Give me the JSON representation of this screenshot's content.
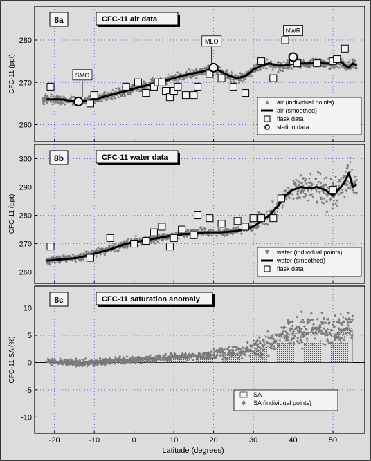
{
  "colors": {
    "background": "#dcdcdc",
    "plot_bg": "#dcdcdc",
    "grid": "#3a3aff",
    "points": "#7a7a7a",
    "smoothed": "#000000",
    "frame": "#000000"
  },
  "xaxis": {
    "label": "Latitude   (degrees)",
    "range": [
      -25,
      58
    ],
    "ticks": [
      -20,
      -10,
      0,
      10,
      20,
      30,
      40,
      50
    ],
    "tick_labels": [
      "-20",
      "-10",
      "0",
      "10",
      "20",
      "30",
      "40",
      "50"
    ]
  },
  "chart_data": [
    {
      "type": "scatter",
      "panel_label": "8a",
      "title": "CFC-11 air data",
      "ylabel": "CFC-11   (ppt)",
      "ylim": [
        256,
        288
      ],
      "yticks": [
        260,
        270,
        280
      ],
      "ytick_labels": [
        "260",
        "270",
        "280"
      ],
      "grid": true,
      "legend_position": "lower-right",
      "legend": [
        "air (individual points)",
        "air (smoothed)",
        "flask data",
        "station data"
      ],
      "annotations": [
        {
          "text": "SMO",
          "x": -13,
          "y": 265.5
        },
        {
          "text": "MLO",
          "x": 19.5,
          "y": 273.5
        },
        {
          "text": "NWR",
          "x": 40,
          "y": 276
        }
      ],
      "series": [
        {
          "name": "air (smoothed)",
          "kind": "line",
          "x": [
            -22,
            -18,
            -15,
            -13,
            -10,
            -6,
            -2,
            2,
            6,
            10,
            14,
            17,
            19,
            20,
            22,
            24,
            26,
            28,
            30,
            32,
            34,
            36,
            38,
            40,
            42,
            44,
            46,
            48,
            50,
            52,
            53,
            54,
            55,
            56
          ],
          "y": [
            266,
            266,
            265.5,
            265.5,
            266,
            267,
            268,
            269,
            270,
            271,
            272,
            272.5,
            273,
            273.5,
            272.5,
            271.5,
            271,
            271.5,
            273,
            274,
            274.5,
            274,
            274,
            274.5,
            274.5,
            274.5,
            275,
            274.5,
            274.5,
            275,
            274,
            273.5,
            274.5,
            274
          ]
        },
        {
          "name": "flask data",
          "kind": "square",
          "x": [
            -21,
            -11,
            -10,
            -2,
            1,
            3,
            5,
            6,
            7,
            8,
            9,
            10,
            11,
            13,
            15,
            16,
            19,
            22,
            25,
            28,
            32,
            35,
            38,
            40,
            41,
            46,
            50,
            51,
            53
          ],
          "y": [
            269,
            265,
            267,
            269,
            270,
            267.5,
            269,
            270,
            270,
            268,
            266.5,
            268,
            269,
            267,
            267,
            269,
            272,
            271,
            269,
            267.5,
            275,
            271,
            280,
            275,
            274.5,
            274.5,
            275,
            275.5,
            278
          ]
        },
        {
          "name": "station data",
          "kind": "circle",
          "x": [
            -14,
            20,
            40
          ],
          "y": [
            265.5,
            273.5,
            276
          ]
        }
      ]
    },
    {
      "type": "scatter",
      "panel_label": "8b",
      "title": "CFC-11 water data",
      "ylabel": "CFC-11   (ppt)",
      "ylim": [
        256,
        305
      ],
      "yticks": [
        260,
        270,
        280,
        290,
        300
      ],
      "ytick_labels": [
        "260",
        "270",
        "280",
        "290",
        "300"
      ],
      "grid": true,
      "legend_position": "lower-right",
      "legend": [
        "water (individual points)",
        "water (smoothed)",
        "flask data"
      ],
      "series": [
        {
          "name": "water (smoothed)",
          "kind": "line",
          "x": [
            -22,
            -18,
            -14,
            -10,
            -6,
            -2,
            2,
            6,
            10,
            14,
            18,
            22,
            26,
            30,
            32,
            34,
            36,
            38,
            40,
            42,
            44,
            46,
            48,
            49,
            50,
            52,
            53,
            54,
            55,
            56
          ],
          "y": [
            264,
            264.5,
            265,
            266.5,
            268,
            270,
            271,
            272,
            273,
            273.5,
            274,
            274,
            274.5,
            276,
            278,
            280,
            283,
            287,
            289,
            290,
            289.5,
            290,
            289,
            288,
            287,
            290,
            292,
            295,
            290,
            291
          ]
        },
        {
          "name": "flask data",
          "kind": "square",
          "x": [
            -21,
            -11,
            -6,
            0,
            3,
            5,
            7,
            9,
            10,
            12,
            15,
            16,
            19,
            22,
            26,
            28,
            30,
            32,
            35,
            37,
            50
          ],
          "y": [
            269,
            265,
            272,
            270,
            271,
            274,
            276,
            269,
            272,
            275,
            273,
            280,
            279,
            277,
            278,
            276,
            279,
            279,
            279,
            286,
            289
          ]
        }
      ]
    },
    {
      "type": "scatter",
      "panel_label": "8c",
      "title": "CFC-11 saturation anomaly",
      "ylabel": "CFC-11 SA   (%)",
      "ylim": [
        -13,
        14
      ],
      "yticks": [
        -10,
        -5,
        0,
        5,
        10
      ],
      "ytick_labels": [
        "-10",
        "-5",
        "0",
        "5",
        "10"
      ],
      "grid": true,
      "legend_position": "lower-right",
      "legend": [
        "SA",
        "SA (individual points)"
      ],
      "series": [
        {
          "name": "SA",
          "kind": "area",
          "x": [
            -22,
            -18,
            -14,
            -10,
            -6,
            -2,
            2,
            6,
            10,
            14,
            18,
            22,
            26,
            30,
            34,
            38,
            42,
            46,
            50,
            52,
            54,
            55
          ],
          "y": [
            0.2,
            0.1,
            -0.2,
            0,
            0.3,
            0.4,
            0.6,
            0.8,
            1,
            1.2,
            1.3,
            1.4,
            1.6,
            2,
            3,
            5,
            5.5,
            5.5,
            5,
            6,
            6.5,
            6
          ]
        }
      ]
    }
  ]
}
